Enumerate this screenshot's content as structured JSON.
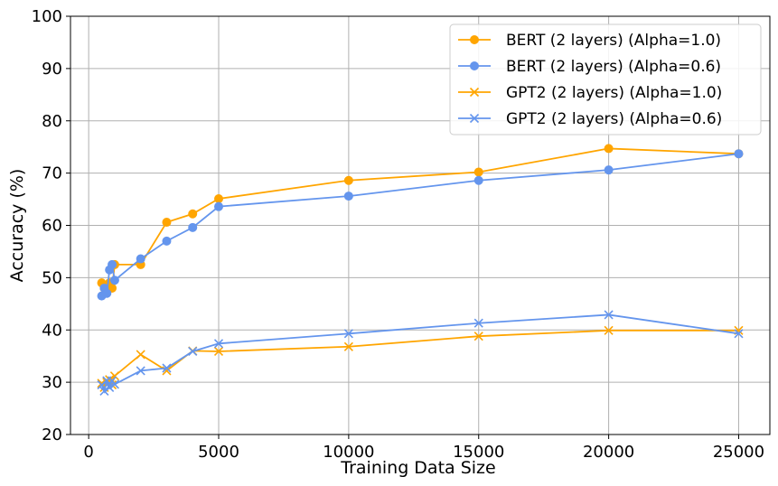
{
  "chart_data": {
    "type": "line",
    "title": "",
    "xlabel": "Training Data Size",
    "ylabel": "Accuracy (%)",
    "xlim": [
      -700,
      26200
    ],
    "ylim": [
      20,
      100
    ],
    "xticks": [
      0,
      5000,
      10000,
      15000,
      20000,
      25000
    ],
    "yticks": [
      20,
      30,
      40,
      50,
      60,
      70,
      80,
      90,
      100
    ],
    "grid": true,
    "legend_position": "top-right",
    "series": [
      {
        "name": "BERT (2 layers) (Alpha=1.0)",
        "color": "#FFA500",
        "marker": "circle",
        "x": [
          500,
          600,
          700,
          800,
          900,
          1000,
          2000,
          3000,
          4000,
          5000,
          10000,
          15000,
          20000,
          25000
        ],
        "y": [
          49.0,
          48.0,
          48.5,
          49.0,
          48.0,
          52.5,
          52.5,
          60.6,
          62.2,
          65.1,
          68.6,
          70.2,
          74.7,
          73.7
        ]
      },
      {
        "name": "BERT (2 layers) (Alpha=0.6)",
        "color": "#6495ED",
        "marker": "circle",
        "x": [
          500,
          600,
          700,
          800,
          900,
          1000,
          2000,
          3000,
          4000,
          5000,
          10000,
          15000,
          20000,
          25000
        ],
        "y": [
          46.5,
          48.0,
          47.0,
          51.5,
          52.5,
          49.5,
          53.6,
          57.0,
          59.6,
          63.6,
          65.6,
          68.6,
          70.6,
          73.7
        ]
      },
      {
        "name": "GPT2 (2 layers) (Alpha=1.0)",
        "color": "#FFA500",
        "marker": "x",
        "x": [
          500,
          600,
          700,
          800,
          900,
          1000,
          2000,
          3000,
          4000,
          5000,
          10000,
          15000,
          20000,
          25000
        ],
        "y": [
          29.8,
          29.0,
          30.0,
          30.5,
          29.5,
          31.2,
          35.3,
          32.2,
          36.0,
          35.9,
          36.8,
          38.8,
          39.9,
          39.9
        ]
      },
      {
        "name": "GPT2 (2 layers) (Alpha=0.6)",
        "color": "#6495ED",
        "marker": "x",
        "x": [
          500,
          600,
          700,
          800,
          900,
          1000,
          2000,
          3000,
          4000,
          5000,
          10000,
          15000,
          20000,
          25000
        ],
        "y": [
          29.5,
          28.3,
          30.3,
          29.0,
          30.3,
          29.6,
          32.2,
          32.7,
          35.9,
          37.4,
          39.3,
          41.3,
          42.9,
          39.3
        ]
      }
    ]
  }
}
